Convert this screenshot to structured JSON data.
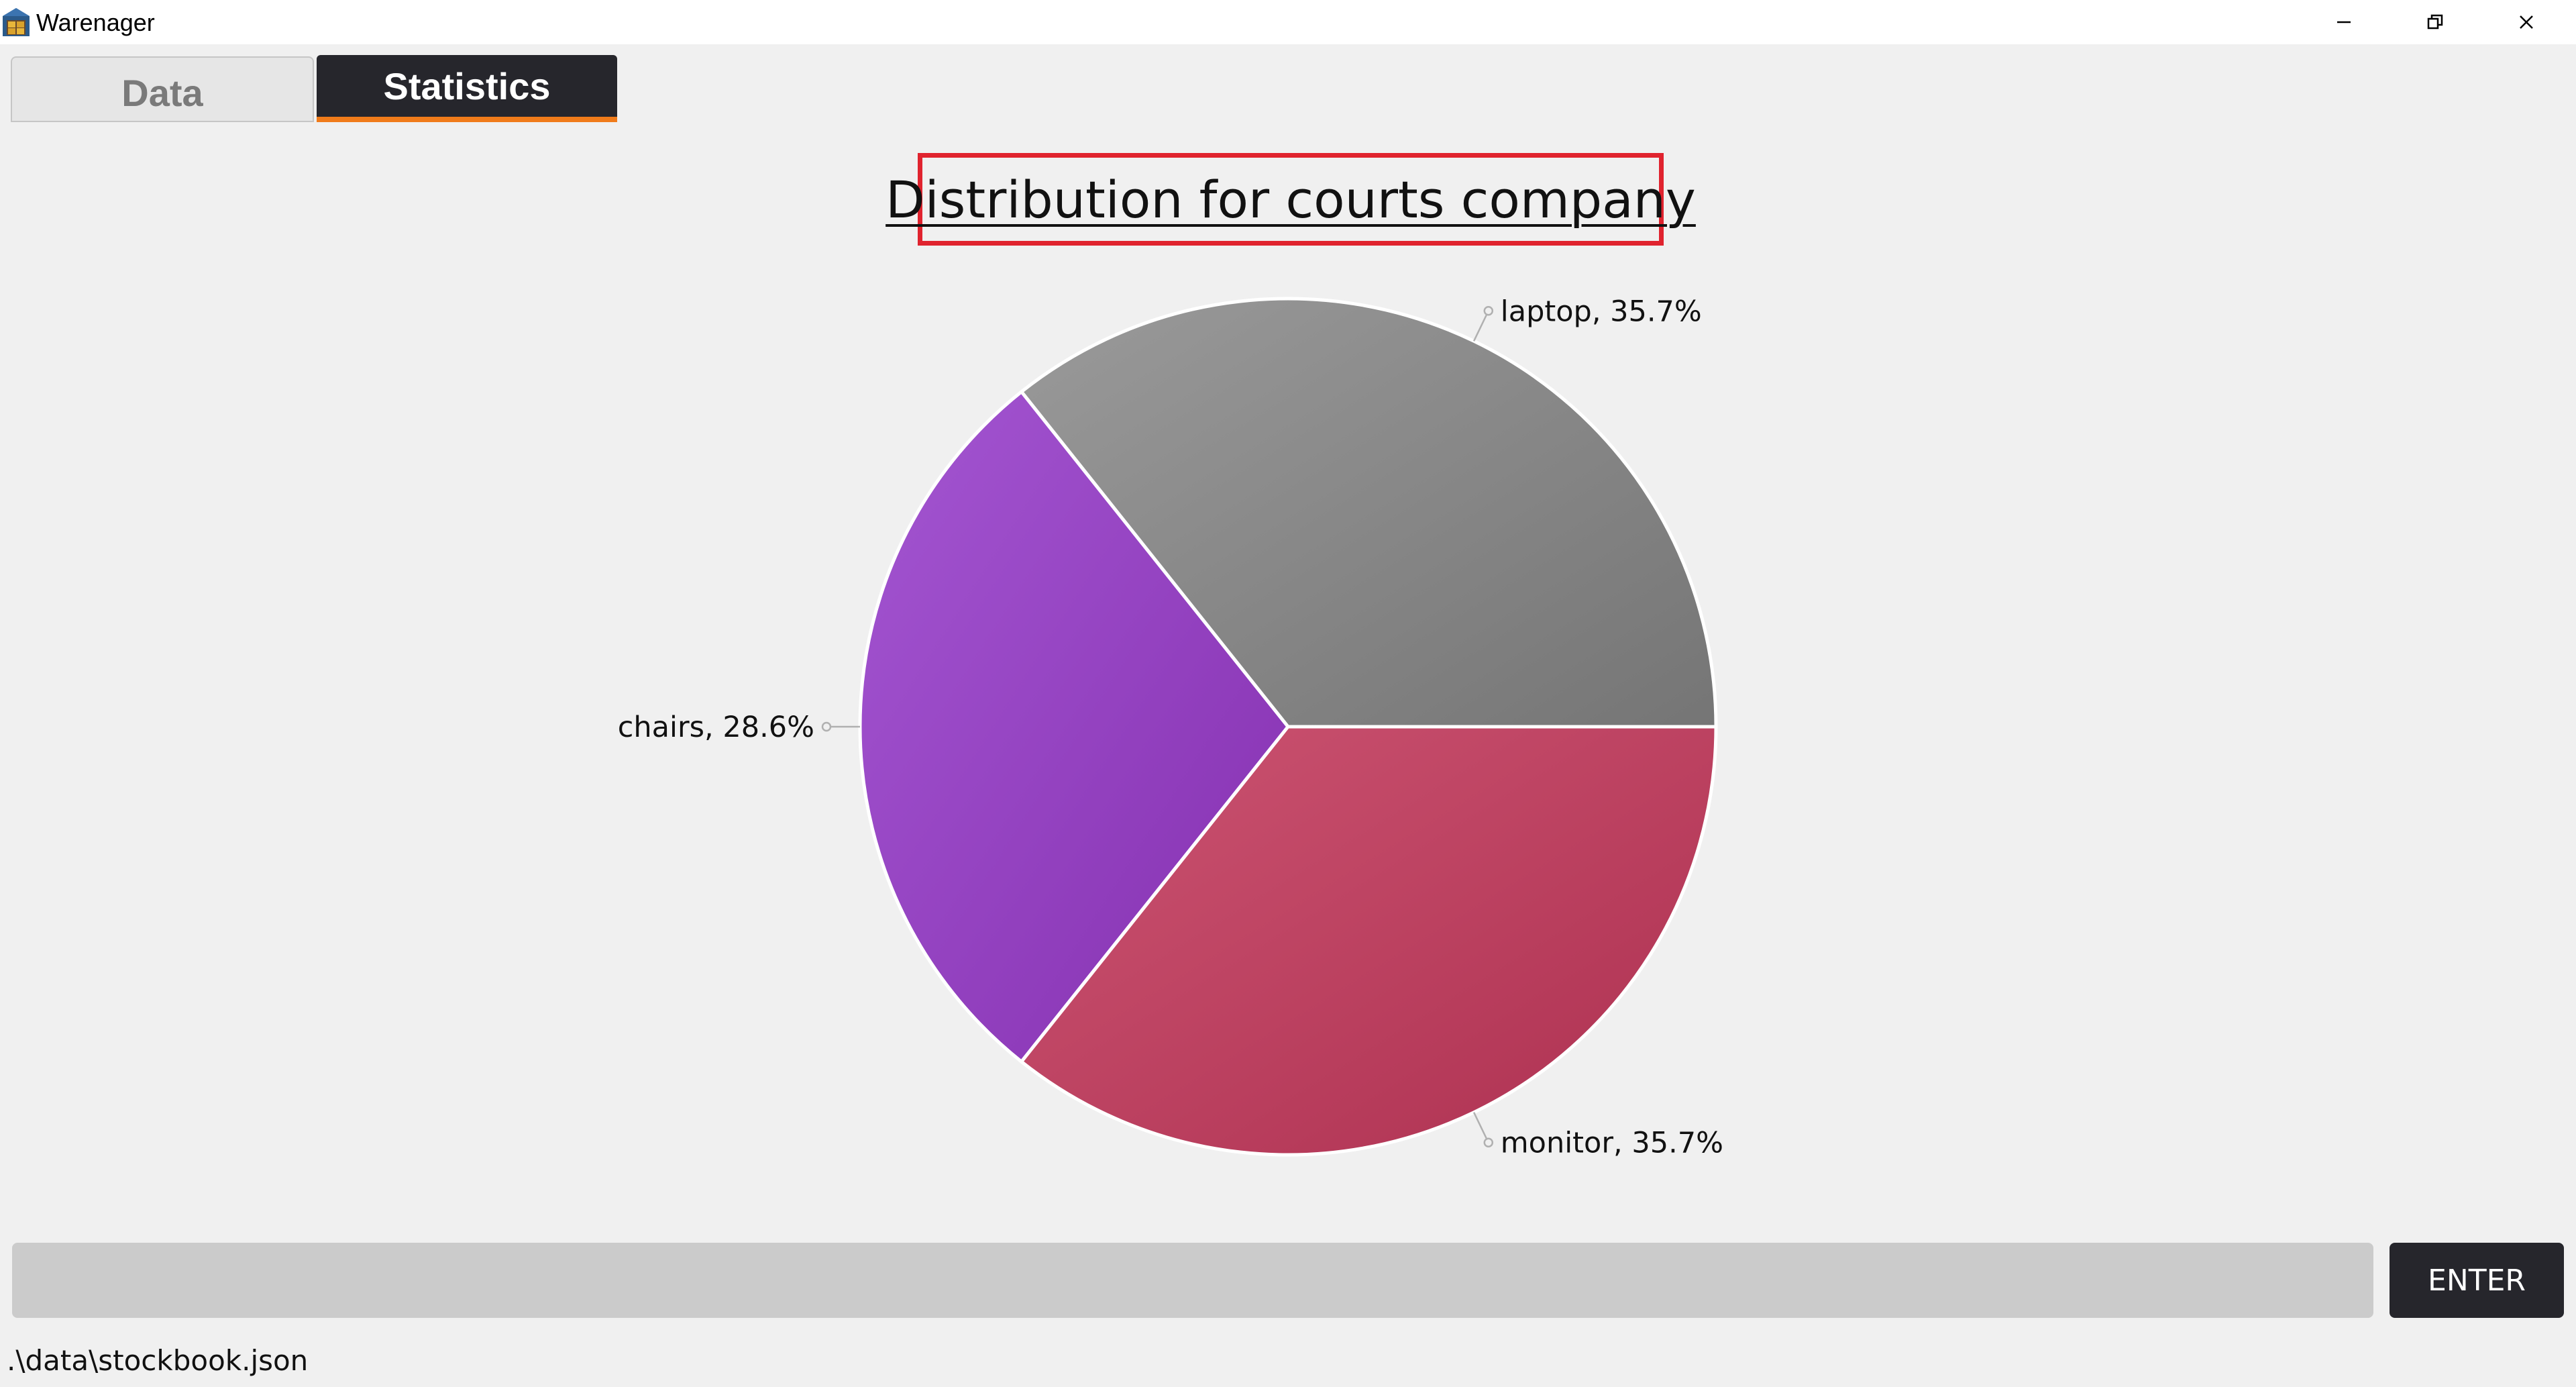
{
  "window": {
    "title": "Warenager",
    "controls": {
      "minimize_icon": "minimize-icon",
      "maximize_icon": "restore-icon",
      "close_icon": "close-icon"
    }
  },
  "tabs": [
    {
      "label": "Data",
      "active": false
    },
    {
      "label": "Statistics",
      "active": true
    }
  ],
  "colors": {
    "accent": "#f07b1a",
    "dark": "#26262c",
    "highlight_border": "#e0232e"
  },
  "chart_data": {
    "type": "pie",
    "title": "Distribution for courts company",
    "slices": [
      {
        "name": "laptop",
        "value": 35.7,
        "label": "laptop, 35.7%",
        "color_start": "#9a9a9a",
        "color_end": "#757575"
      },
      {
        "name": "chairs",
        "value": 28.6,
        "label": "chairs, 28.6%",
        "color_start": "#a456d2",
        "color_end": "#8530b0"
      },
      {
        "name": "monitor",
        "value": 35.7,
        "label": "monitor, 35.7%",
        "color_start": "#cc5472",
        "color_end": "#ad3050"
      }
    ],
    "start": "east",
    "direction": "counterclockwise"
  },
  "command": {
    "input_value": "",
    "input_placeholder": "",
    "enter_label": "ENTER"
  },
  "status": {
    "file_path": ".\\data\\stockbook.json"
  }
}
